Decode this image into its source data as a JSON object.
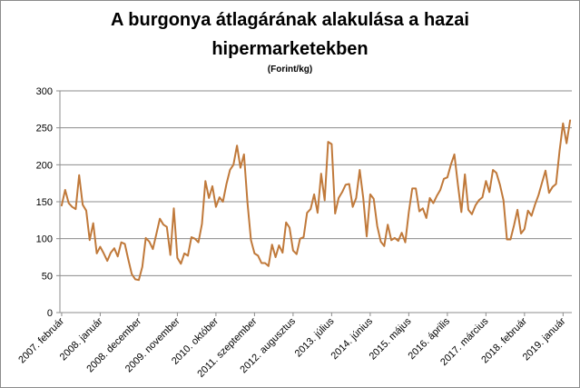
{
  "chart_data": {
    "type": "line",
    "title_line1": "A burgonya átlagárának alakulása a hazai",
    "title_line2": "hipermarketekben",
    "subtitle": "(Forint/kg)",
    "ylim": [
      0,
      300
    ],
    "yticks": [
      "0",
      "50",
      "100",
      "150",
      "200",
      "250",
      "300"
    ],
    "grid": true,
    "legend": "none",
    "line_color": "#c0793a",
    "x_tick_labels": [
      {
        "i": 0,
        "label": "2007. február"
      },
      {
        "i": 11,
        "label": "2008. január"
      },
      {
        "i": 22,
        "label": "2008. december"
      },
      {
        "i": 33,
        "label": "2009. november"
      },
      {
        "i": 44,
        "label": "2010. október"
      },
      {
        "i": 55,
        "label": "2011. szeptember"
      },
      {
        "i": 66,
        "label": "2012. augusztus"
      },
      {
        "i": 77,
        "label": "2013. július"
      },
      {
        "i": 88,
        "label": "2014. június"
      },
      {
        "i": 99,
        "label": "2015. május"
      },
      {
        "i": 110,
        "label": "2016. április"
      },
      {
        "i": 121,
        "label": "2017. március"
      },
      {
        "i": 132,
        "label": "2018. február"
      },
      {
        "i": 143,
        "label": "2019. január"
      }
    ],
    "values": [
      145,
      166,
      148,
      143,
      140,
      186,
      146,
      138,
      98,
      121,
      80,
      89,
      80,
      70,
      81,
      87,
      76,
      95,
      93,
      72,
      52,
      45,
      44,
      62,
      101,
      96,
      86,
      106,
      127,
      119,
      116,
      78,
      141,
      74,
      66,
      80,
      77,
      102,
      100,
      95,
      120,
      178,
      155,
      171,
      143,
      156,
      150,
      174,
      193,
      200,
      226,
      196,
      214,
      148,
      98,
      80,
      77,
      67,
      67,
      63,
      92,
      75,
      91,
      81,
      122,
      115,
      84,
      79,
      100,
      102,
      135,
      140,
      160,
      135,
      188,
      152,
      231,
      228,
      134,
      155,
      163,
      173,
      174,
      143,
      155,
      193,
      155,
      103,
      160,
      154,
      117,
      96,
      90,
      119,
      98,
      101,
      97,
      108,
      95,
      136,
      168,
      168,
      137,
      141,
      128,
      155,
      148,
      158,
      166,
      181,
      183,
      200,
      214,
      173,
      136,
      187,
      139,
      133,
      145,
      152,
      156,
      178,
      163,
      193,
      189,
      173,
      152,
      99,
      99,
      118,
      139,
      107,
      113,
      138,
      131,
      146,
      159,
      176,
      192,
      162,
      170,
      174,
      219,
      256,
      229,
      260
    ]
  }
}
